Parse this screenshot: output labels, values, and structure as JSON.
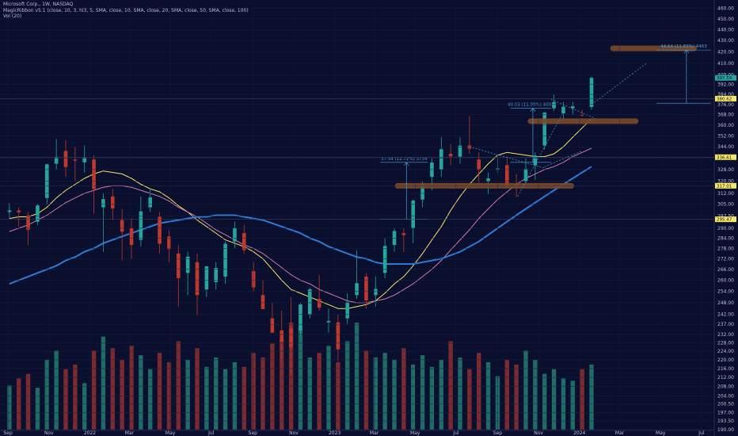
{
  "header": {
    "title": "Microsoft Corp., 1W, NASDAQ",
    "indicator": "MagicRibbon v5.1 (close, 10, 3, hl3, 5, SMA, close, 10, SMA, close, 20, SMA, close, 50, SMA, close, 100)",
    "volume": "Vol (20)"
  },
  "colors": {
    "background": "#0b0f2e",
    "up": "#26a69a",
    "down": "#c0392b",
    "ma_fast": "#f5e663",
    "ma_mid": "#d17aa8",
    "ma_slow": "#2e7bd6",
    "annotation": "#4aa3df",
    "marker": "#7a4a2a"
  },
  "chart_data": {
    "type": "line",
    "title": "Microsoft Corp., 1W, NASDAQ",
    "y_axis_labels": [
      "460.00",
      "450.00",
      "440.00",
      "430.00",
      "420.00",
      "410.00",
      "400.00",
      "392.00",
      "384.00",
      "376.00",
      "368.00",
      "360.00",
      "352.00",
      "344.00",
      "336.00",
      "328.00",
      "320.00",
      "312.00",
      "305.00",
      "297.50",
      "290.00",
      "284.00",
      "278.00",
      "272.00",
      "266.00",
      "260.00",
      "254.00",
      "248.00",
      "242.00",
      "237.00",
      "232.00",
      "228.00",
      "224.00",
      "220.00",
      "216.00",
      "212.00",
      "208.00",
      "204.00",
      "200.50",
      "197.00",
      "193.50",
      "190.00"
    ],
    "x_axis_labels": [
      "Sep",
      "Nov",
      "2022",
      "Mar",
      "May",
      "Jul",
      "Sep",
      "Nov",
      "2023",
      "Mar",
      "May",
      "Jul",
      "Sep",
      "Nov",
      "2024",
      "Mar",
      "May",
      "Jul"
    ],
    "ylim": [
      190,
      462
    ],
    "y_scale": "log",
    "price_series": [
      {
        "date": "2021-09-03",
        "open": 300,
        "high": 305.8,
        "low": 296,
        "close": 301.1
      },
      {
        "date": "2021-09-17",
        "open": 301,
        "high": 303,
        "low": 291,
        "close": 299.9
      },
      {
        "date": "2021-10-01",
        "open": 298,
        "high": 300,
        "low": 280,
        "close": 289.1
      },
      {
        "date": "2021-10-15",
        "open": 294,
        "high": 305,
        "low": 292,
        "close": 304.2
      },
      {
        "date": "2021-10-29",
        "open": 309,
        "high": 332,
        "low": 305,
        "close": 331.6
      },
      {
        "date": "2021-11-12",
        "open": 332,
        "high": 349.7,
        "low": 328,
        "close": 336.7
      },
      {
        "date": "2021-11-26",
        "open": 341,
        "high": 349,
        "low": 323,
        "close": 329.7
      },
      {
        "date": "2021-12-10",
        "open": 335,
        "high": 344,
        "low": 320,
        "close": 334.2
      },
      {
        "date": "2021-12-24",
        "open": 333,
        "high": 345,
        "low": 326,
        "close": 336.3
      },
      {
        "date": "2022-01-07",
        "open": 335,
        "high": 338,
        "low": 299,
        "close": 314.9
      },
      {
        "date": "2022-01-21",
        "open": 303,
        "high": 312,
        "low": 276,
        "close": 308.3
      },
      {
        "date": "2022-02-04",
        "open": 310,
        "high": 315,
        "low": 295,
        "close": 302.3
      },
      {
        "date": "2022-02-18",
        "open": 295,
        "high": 302,
        "low": 271,
        "close": 287.9
      },
      {
        "date": "2022-03-04",
        "open": 290,
        "high": 296,
        "low": 272,
        "close": 280.0
      },
      {
        "date": "2022-03-18",
        "open": 283,
        "high": 310,
        "low": 279,
        "close": 300.4
      },
      {
        "date": "2022-04-01",
        "open": 303,
        "high": 315,
        "low": 300,
        "close": 309.4
      },
      {
        "date": "2022-04-15",
        "open": 297,
        "high": 300,
        "low": 275,
        "close": 280.7
      },
      {
        "date": "2022-04-29",
        "open": 285,
        "high": 289,
        "low": 270,
        "close": 277.5
      },
      {
        "date": "2022-05-13",
        "open": 275,
        "high": 280,
        "low": 246,
        "close": 261.1
      },
      {
        "date": "2022-05-27",
        "open": 264,
        "high": 276,
        "low": 252,
        "close": 273.2
      },
      {
        "date": "2022-06-10",
        "open": 270,
        "high": 275,
        "low": 241.5,
        "close": 252.0
      },
      {
        "date": "2022-06-24",
        "open": 255,
        "high": 268,
        "low": 251,
        "close": 267.7
      },
      {
        "date": "2022-07-08",
        "open": 259,
        "high": 270,
        "low": 255,
        "close": 266.8
      },
      {
        "date": "2022-07-22",
        "open": 262,
        "high": 282,
        "low": 258,
        "close": 280.7
      },
      {
        "date": "2022-08-05",
        "open": 282,
        "high": 294,
        "low": 278,
        "close": 290.2
      },
      {
        "date": "2022-08-19",
        "open": 287,
        "high": 292,
        "low": 275,
        "close": 277.0
      },
      {
        "date": "2022-09-02",
        "open": 265,
        "high": 270,
        "low": 254,
        "close": 256.1
      },
      {
        "date": "2022-09-16",
        "open": 252,
        "high": 260,
        "low": 245,
        "close": 244.7
      },
      {
        "date": "2022-09-30",
        "open": 240,
        "high": 248,
        "low": 233,
        "close": 232.9
      },
      {
        "date": "2022-10-14",
        "open": 234,
        "high": 244,
        "low": 219,
        "close": 228.6
      },
      {
        "date": "2022-10-28",
        "open": 235,
        "high": 251,
        "low": 213.4,
        "close": 226.0
      },
      {
        "date": "2022-11-11",
        "open": 234,
        "high": 248,
        "low": 231,
        "close": 247.1
      },
      {
        "date": "2022-11-25",
        "open": 242,
        "high": 256,
        "low": 240,
        "close": 255.1
      },
      {
        "date": "2022-12-09",
        "open": 250,
        "high": 263,
        "low": 244,
        "close": 245.4
      },
      {
        "date": "2022-12-23",
        "open": 238,
        "high": 245,
        "low": 233,
        "close": 238.7
      },
      {
        "date": "2023-01-06",
        "open": 238,
        "high": 242,
        "low": 219.4,
        "close": 224.9
      },
      {
        "date": "2023-01-20",
        "open": 240,
        "high": 253,
        "low": 237,
        "close": 248.2
      },
      {
        "date": "2023-02-03",
        "open": 252,
        "high": 276.8,
        "low": 250,
        "close": 258.4
      },
      {
        "date": "2023-02-17",
        "open": 262,
        "high": 264,
        "low": 245,
        "close": 249.2
      },
      {
        "date": "2023-03-03",
        "open": 252,
        "high": 262,
        "low": 246,
        "close": 255.3
      },
      {
        "date": "2023-03-17",
        "open": 264,
        "high": 284,
        "low": 261,
        "close": 279.4
      },
      {
        "date": "2023-03-31",
        "open": 280,
        "high": 290,
        "low": 276,
        "close": 288.3
      },
      {
        "date": "2023-04-14",
        "open": 287,
        "high": 290,
        "low": 276,
        "close": 285.8
      },
      {
        "date": "2023-04-28",
        "open": 290,
        "high": 308,
        "low": 281,
        "close": 307.3
      },
      {
        "date": "2023-05-12",
        "open": 308,
        "high": 320,
        "low": 303,
        "close": 318.3
      },
      {
        "date": "2023-05-26",
        "open": 323,
        "high": 336,
        "low": 314,
        "close": 332.9
      },
      {
        "date": "2023-06-09",
        "open": 328,
        "high": 351,
        "low": 323,
        "close": 342.3
      },
      {
        "date": "2023-06-23",
        "open": 339,
        "high": 346,
        "low": 331,
        "close": 337.2
      },
      {
        "date": "2023-07-07",
        "open": 337,
        "high": 351,
        "low": 332,
        "close": 344.9
      },
      {
        "date": "2023-07-21",
        "open": 345,
        "high": 366.8,
        "low": 339,
        "close": 342.7
      },
      {
        "date": "2023-08-04",
        "open": 335,
        "high": 340,
        "low": 319,
        "close": 327.8
      },
      {
        "date": "2023-08-18",
        "open": 320,
        "high": 326,
        "low": 311.6,
        "close": 321.9
      },
      {
        "date": "2023-09-01",
        "open": 328,
        "high": 337,
        "low": 326,
        "close": 328.7
      },
      {
        "date": "2023-09-15",
        "open": 331,
        "high": 337,
        "low": 316,
        "close": 316.5
      },
      {
        "date": "2023-09-29",
        "open": 318,
        "high": 325,
        "low": 309.5,
        "close": 315.8
      },
      {
        "date": "2023-10-13",
        "open": 320,
        "high": 336,
        "low": 318,
        "close": 328.4
      },
      {
        "date": "2023-10-27",
        "open": 331,
        "high": 340,
        "low": 321,
        "close": 337.7
      },
      {
        "date": "2023-11-10",
        "open": 345,
        "high": 370,
        "low": 342,
        "close": 369.7
      },
      {
        "date": "2023-11-24",
        "open": 373,
        "high": 384,
        "low": 371,
        "close": 377.8
      },
      {
        "date": "2023-12-08",
        "open": 369,
        "high": 378,
        "low": 363,
        "close": 374.2
      },
      {
        "date": "2023-12-22",
        "open": 373,
        "high": 378,
        "low": 368,
        "close": 374.6
      },
      {
        "date": "2024-01-05",
        "open": 368,
        "high": 372,
        "low": 366.5,
        "close": 367.8
      },
      {
        "date": "2024-01-19",
        "open": 374,
        "high": 398.7,
        "low": 372,
        "close": 397.6
      }
    ],
    "series": [
      {
        "name": "",
        "values": [
          296,
          297,
          297,
          299,
          303,
          309,
          314,
          318,
          322,
          325,
          327,
          326,
          325,
          322,
          318,
          315,
          313,
          309,
          304,
          300,
          295,
          291,
          287,
          283,
          281,
          279,
          276,
          272,
          266,
          260,
          255,
          253,
          251,
          249,
          247,
          245,
          245,
          246,
          247,
          249,
          253,
          258,
          262,
          268,
          275,
          283,
          291,
          301,
          310,
          318,
          325,
          332,
          338,
          340,
          339,
          338,
          337,
          337,
          339,
          344,
          351,
          358,
          365
        ]
      },
      {
        "name": "",
        "values": [
          288,
          290,
          292,
          295,
          298,
          302,
          306,
          309,
          312,
          314,
          316,
          317,
          317,
          316,
          314,
          312,
          310,
          307,
          303,
          300,
          297,
          293,
          289,
          286,
          283,
          280,
          278,
          275,
          271,
          267,
          263,
          260,
          258,
          255,
          253,
          251,
          249,
          248,
          248,
          249,
          250,
          252,
          255,
          258,
          262,
          266,
          271,
          277,
          283,
          289,
          296,
          302,
          308,
          313,
          318,
          322,
          325,
          328,
          330,
          333,
          337,
          340,
          343
        ]
      },
      {
        "name": "",
        "values": [
          258,
          260,
          262,
          264,
          266,
          268,
          271,
          273,
          276,
          278,
          281,
          283,
          285,
          287,
          289,
          291,
          293,
          294,
          295,
          296,
          297,
          297,
          298,
          298,
          298,
          297,
          296,
          295,
          293,
          291,
          289,
          287,
          284,
          282,
          279,
          277,
          275,
          273,
          272,
          270,
          269,
          269,
          269,
          269,
          270,
          271,
          272,
          274,
          276,
          279,
          282,
          286,
          290,
          294,
          298,
          302,
          306,
          310,
          314,
          318,
          322,
          326,
          330
        ]
      }
    ],
    "volume": [
      19,
      22,
      24,
      18,
      30,
      34,
      26,
      28,
      20,
      34,
      40,
      35,
      30,
      36,
      32,
      26,
      33,
      29,
      38,
      30,
      35,
      27,
      31,
      26,
      29,
      27,
      33,
      31,
      37,
      39,
      46,
      44,
      31,
      33,
      36,
      29,
      38,
      46,
      34,
      31,
      33,
      30,
      35,
      28,
      32,
      27,
      30,
      38,
      31,
      26,
      33,
      29,
      23,
      30,
      28,
      34,
      30,
      24,
      26,
      22,
      21,
      26,
      28
    ],
    "annotations": [
      {
        "text": "37.54 (12.72%) 3734"
      },
      {
        "text": "40.03 (11.99%) 4003"
      },
      {
        "text": "44.64 (11.83%) 4463"
      }
    ],
    "price_tags": [
      {
        "value": "397.59",
        "color": "#26a69a"
      },
      {
        "value": "380.62",
        "color": "#f5e663"
      },
      {
        "value": "336.61",
        "color": "#f5e663"
      },
      {
        "value": "317.01",
        "color": "#f5e663"
      },
      {
        "value": "295.47",
        "color": "#f5e663"
      }
    ]
  }
}
